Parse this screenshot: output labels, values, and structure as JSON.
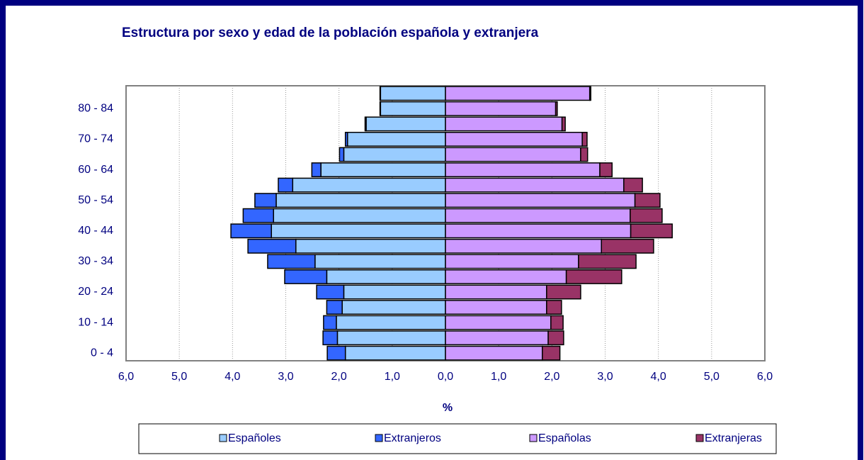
{
  "chart_data": {
    "type": "pyramid",
    "title": "Estructura por sexo y edad de la población española y extranjera",
    "x_label": "%",
    "categories": [
      "0 - 4",
      null,
      "10 - 14",
      null,
      "20 - 24",
      null,
      "30 - 34",
      null,
      "40 - 44",
      null,
      "50 - 54",
      null,
      "60 - 64",
      null,
      "70 - 74",
      null,
      "80 - 84",
      null
    ],
    "series": [
      {
        "name": "Españoles",
        "color": "#99ccff",
        "side": "left",
        "values": [
          -1.88,
          -2.03,
          -2.05,
          -1.94,
          -1.91,
          -2.23,
          -2.45,
          -2.81,
          -3.27,
          -3.23,
          -3.18,
          -2.87,
          -2.34,
          -1.91,
          -1.84,
          -1.49,
          -1.22,
          -1.22
        ]
      },
      {
        "name": "Extranjeros",
        "color": "#3366ff",
        "side": "left",
        "values": [
          -0.34,
          -0.27,
          -0.24,
          -0.29,
          -0.51,
          -0.79,
          -0.89,
          -0.9,
          -0.76,
          -0.57,
          -0.4,
          -0.27,
          -0.17,
          -0.08,
          -0.04,
          -0.02,
          -0.01,
          -0.01
        ]
      },
      {
        "name": "Españolas",
        "color": "#cc99ff",
        "side": "right",
        "values": [
          1.82,
          1.93,
          1.98,
          1.9,
          1.9,
          2.27,
          2.5,
          2.93,
          3.48,
          3.47,
          3.56,
          3.35,
          2.9,
          2.54,
          2.57,
          2.19,
          2.07,
          2.71
        ]
      },
      {
        "name": "Extranjeras",
        "color": "#993366",
        "side": "right",
        "values": [
          0.33,
          0.29,
          0.23,
          0.28,
          0.64,
          1.04,
          1.08,
          0.98,
          0.78,
          0.6,
          0.47,
          0.35,
          0.23,
          0.13,
          0.09,
          0.06,
          0.03,
          0.02
        ]
      }
    ],
    "xlim": [
      -6,
      6
    ],
    "xticks": [
      {
        "value": -6,
        "label": "6,0"
      },
      {
        "value": -5,
        "label": "5,0"
      },
      {
        "value": -4,
        "label": "4,0"
      },
      {
        "value": -3,
        "label": "3,0"
      },
      {
        "value": -2,
        "label": "2,0"
      },
      {
        "value": -1,
        "label": "1,0"
      },
      {
        "value": 0,
        "label": "0,0"
      },
      {
        "value": 1,
        "label": "1,0"
      },
      {
        "value": 2,
        "label": "2,0"
      },
      {
        "value": 3,
        "label": "3,0"
      },
      {
        "value": 4,
        "label": "4,0"
      },
      {
        "value": 5,
        "label": "5,0"
      },
      {
        "value": 6,
        "label": "6,0"
      }
    ],
    "grid": true,
    "legend": "bottom"
  }
}
